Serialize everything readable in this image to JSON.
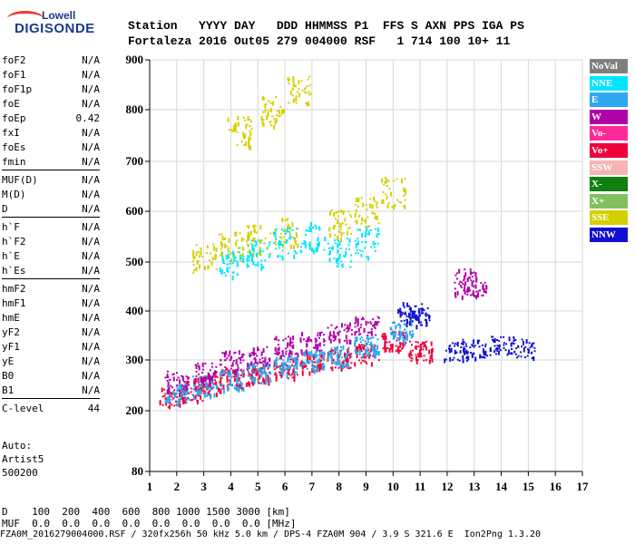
{
  "brand": {
    "line1": "Lowell",
    "line2": "DIGISONDE"
  },
  "header": {
    "row1": "Station   YYYY DAY   DDD HHMMSS P1  FFS S AXN PPS IGA PS",
    "row2": "Fortaleza 2016 Out05 279 004000 RSF   1 714 100 10+ 11"
  },
  "params_groups": [
    [
      {
        "name": "foF2",
        "value": "N/A"
      },
      {
        "name": "foF1",
        "value": "N/A"
      },
      {
        "name": "foF1p",
        "value": "N/A"
      },
      {
        "name": "foE",
        "value": "N/A"
      },
      {
        "name": "foEp",
        "value": "0.42"
      },
      {
        "name": "fxI",
        "value": "N/A"
      },
      {
        "name": "foEs",
        "value": "N/A"
      },
      {
        "name": "fmin",
        "value": "N/A"
      }
    ],
    [
      {
        "name": "MUF(D)",
        "value": "N/A"
      },
      {
        "name": "M(D)",
        "value": "N/A"
      },
      {
        "name": "D",
        "value": "N/A"
      }
    ],
    [
      {
        "name": "h`F",
        "value": "N/A"
      },
      {
        "name": "h`F2",
        "value": "N/A"
      },
      {
        "name": "h`E",
        "value": "N/A"
      },
      {
        "name": "h`Es",
        "value": "N/A"
      }
    ],
    [
      {
        "name": "hmF2",
        "value": "N/A"
      },
      {
        "name": "hmF1",
        "value": "N/A"
      },
      {
        "name": "hmE",
        "value": "N/A"
      },
      {
        "name": "yF2",
        "value": "N/A"
      },
      {
        "name": "yF1",
        "value": "N/A"
      },
      {
        "name": "yE",
        "value": "N/A"
      },
      {
        "name": "B0",
        "value": "N/A"
      },
      {
        "name": "B1",
        "value": "N/A"
      }
    ],
    [
      {
        "name": "C-level",
        "value": "44"
      }
    ]
  ],
  "auto": {
    "line1": "Auto:",
    "line2": "Artist5",
    "line3": "500200"
  },
  "footer": {
    "line1": "D    100  200  400  600  800 1000 1500 3000 [km]",
    "line2": "MUF  0.0  0.0  0.0  0.0  0.0  0.0  0.0  0.0 [MHz]",
    "line3": "FZA0M_2016279004000.RSF / 320fx256h 50 kHz 5.0 km / DPS-4 FZA0M 904 / 3.9 S 321.6 E  Ion2Png 1.3.20"
  },
  "legend": [
    {
      "label": "NoVal",
      "color": "#7f7f7f"
    },
    {
      "label": "NNE",
      "color": "#00e5ff"
    },
    {
      "label": "E",
      "color": "#2ea8f0"
    },
    {
      "label": "W",
      "color": "#b000a8"
    },
    {
      "label": "Vo-",
      "color": "#ff2a9a"
    },
    {
      "label": "Vo+",
      "color": "#f0003a"
    },
    {
      "label": "SSW",
      "color": "#f5b5b5"
    },
    {
      "label": "X-",
      "color": "#108010"
    },
    {
      "label": "X+",
      "color": "#84c060"
    },
    {
      "label": "SSE",
      "color": "#d4d000"
    },
    {
      "label": "NNW",
      "color": "#1010d0"
    }
  ],
  "chart_data": {
    "type": "scatter",
    "title": "",
    "xlabel": "",
    "ylabel": "",
    "xlim": [
      1,
      17
    ],
    "ylim": [
      80,
      900
    ],
    "x_ticks": [
      "1",
      "2",
      "3",
      "4",
      "5",
      "6",
      "7",
      "8",
      "9",
      "10",
      "11",
      "12",
      "13",
      "14",
      "15",
      "16",
      "17"
    ],
    "y_ticks": [
      "80",
      "200",
      "300",
      "400",
      "500",
      "600",
      "700",
      "800",
      "900"
    ],
    "y_tick_values": [
      80,
      200,
      300,
      400,
      500,
      600,
      700,
      800,
      900
    ],
    "grid": true,
    "series": [
      {
        "name": "Vo+",
        "values": [
          [
            1.8,
            228
          ],
          [
            2.5,
            240
          ],
          [
            3.2,
            255
          ],
          [
            4,
            265
          ],
          [
            5,
            275
          ],
          [
            6,
            285
          ],
          [
            7,
            295
          ],
          [
            8,
            305
          ],
          [
            9,
            315
          ],
          [
            10,
            340
          ],
          [
            11,
            320
          ]
        ]
      },
      {
        "name": "E",
        "values": [
          [
            2,
            235
          ],
          [
            3,
            250
          ],
          [
            4,
            262
          ],
          [
            5,
            275
          ],
          [
            6,
            290
          ],
          [
            7,
            300
          ],
          [
            8,
            310
          ],
          [
            9,
            330
          ],
          [
            10.3,
            360
          ]
        ]
      },
      {
        "name": "W",
        "values": [
          [
            2,
            260
          ],
          [
            3,
            275
          ],
          [
            4,
            300
          ],
          [
            5,
            310
          ],
          [
            6,
            330
          ],
          [
            7,
            340
          ],
          [
            8,
            360
          ],
          [
            9,
            370
          ],
          [
            12.7,
            460
          ],
          [
            13,
            450
          ]
        ]
      },
      {
        "name": "NNW",
        "values": [
          [
            12.3,
            320
          ],
          [
            13,
            325
          ],
          [
            14,
            330
          ],
          [
            14.8,
            325
          ],
          [
            10.6,
            400
          ],
          [
            10.9,
            390
          ]
        ]
      },
      {
        "name": "SSE",
        "values": [
          [
            3,
            510
          ],
          [
            4,
            530
          ],
          [
            5,
            545
          ],
          [
            6,
            560
          ],
          [
            8,
            575
          ],
          [
            9,
            600
          ],
          [
            10,
            640
          ],
          [
            4.3,
            760
          ],
          [
            5.5,
            800
          ],
          [
            6.5,
            840
          ]
        ]
      },
      {
        "name": "NNE",
        "values": [
          [
            4,
            500
          ],
          [
            5,
            520
          ],
          [
            6,
            540
          ],
          [
            7,
            550
          ],
          [
            8,
            520
          ],
          [
            9,
            540
          ]
        ]
      }
    ]
  }
}
